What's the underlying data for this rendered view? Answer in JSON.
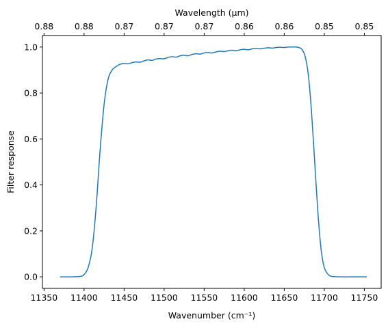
{
  "chart_data": {
    "type": "line",
    "title": "",
    "xlabel": "Wavenumber (cm⁻¹)",
    "ylabel": "Filter response",
    "top_xlabel": "Wavelength (μm)",
    "xlim": [
      11348,
      11771
    ],
    "ylim": [
      -0.05,
      1.05
    ],
    "xticks": [
      11350,
      11400,
      11450,
      11500,
      11550,
      11600,
      11650,
      11700,
      11750
    ],
    "xtick_labels": [
      "11350",
      "11400",
      "11450",
      "11500",
      "11550",
      "11600",
      "11650",
      "11700",
      "11750"
    ],
    "yticks": [
      0.0,
      0.2,
      0.4,
      0.6,
      0.8,
      1.0
    ],
    "ytick_labels": [
      "0.0",
      "0.2",
      "0.4",
      "0.6",
      "0.8",
      "1.0"
    ],
    "top_xticks": [
      11350,
      11400,
      11450,
      11500,
      11550,
      11600,
      11650,
      11700,
      11750
    ],
    "top_xtick_labels": [
      "0.88",
      "0.88",
      "0.87",
      "0.87",
      "0.87",
      "0.86",
      "0.86",
      "0.85",
      "0.85"
    ],
    "grid": false,
    "series": [
      {
        "color": "#1f77b4",
        "x": [
          11370,
          11385,
          11395,
          11400,
          11405,
          11410,
          11415,
          11420,
          11425,
          11430,
          11435,
          11440,
          11445,
          11450,
          11455,
          11460,
          11465,
          11470,
          11475,
          11480,
          11485,
          11490,
          11495,
          11500,
          11505,
          11510,
          11515,
          11520,
          11525,
          11530,
          11535,
          11540,
          11545,
          11550,
          11555,
          11560,
          11565,
          11570,
          11575,
          11580,
          11585,
          11590,
          11595,
          11600,
          11605,
          11610,
          11615,
          11620,
          11625,
          11630,
          11635,
          11640,
          11645,
          11650,
          11655,
          11660,
          11665,
          11668,
          11672,
          11676,
          11680,
          11684,
          11688,
          11692,
          11696,
          11700,
          11705,
          11710,
          11720,
          11735,
          11753
        ],
        "y": [
          0.0,
          0.0,
          0.002,
          0.01,
          0.04,
          0.12,
          0.3,
          0.55,
          0.75,
          0.86,
          0.9,
          0.915,
          0.925,
          0.928,
          0.927,
          0.932,
          0.935,
          0.934,
          0.94,
          0.944,
          0.942,
          0.948,
          0.95,
          0.949,
          0.955,
          0.958,
          0.956,
          0.962,
          0.964,
          0.962,
          0.968,
          0.971,
          0.969,
          0.974,
          0.976,
          0.974,
          0.979,
          0.982,
          0.98,
          0.984,
          0.986,
          0.984,
          0.988,
          0.99,
          0.988,
          0.992,
          0.994,
          0.992,
          0.995,
          0.997,
          0.995,
          0.998,
          0.999,
          0.998,
          1.0,
          1.0,
          1.0,
          0.998,
          0.99,
          0.96,
          0.88,
          0.72,
          0.5,
          0.28,
          0.12,
          0.04,
          0.01,
          0.002,
          0.0,
          0.0,
          0.0
        ]
      }
    ]
  }
}
